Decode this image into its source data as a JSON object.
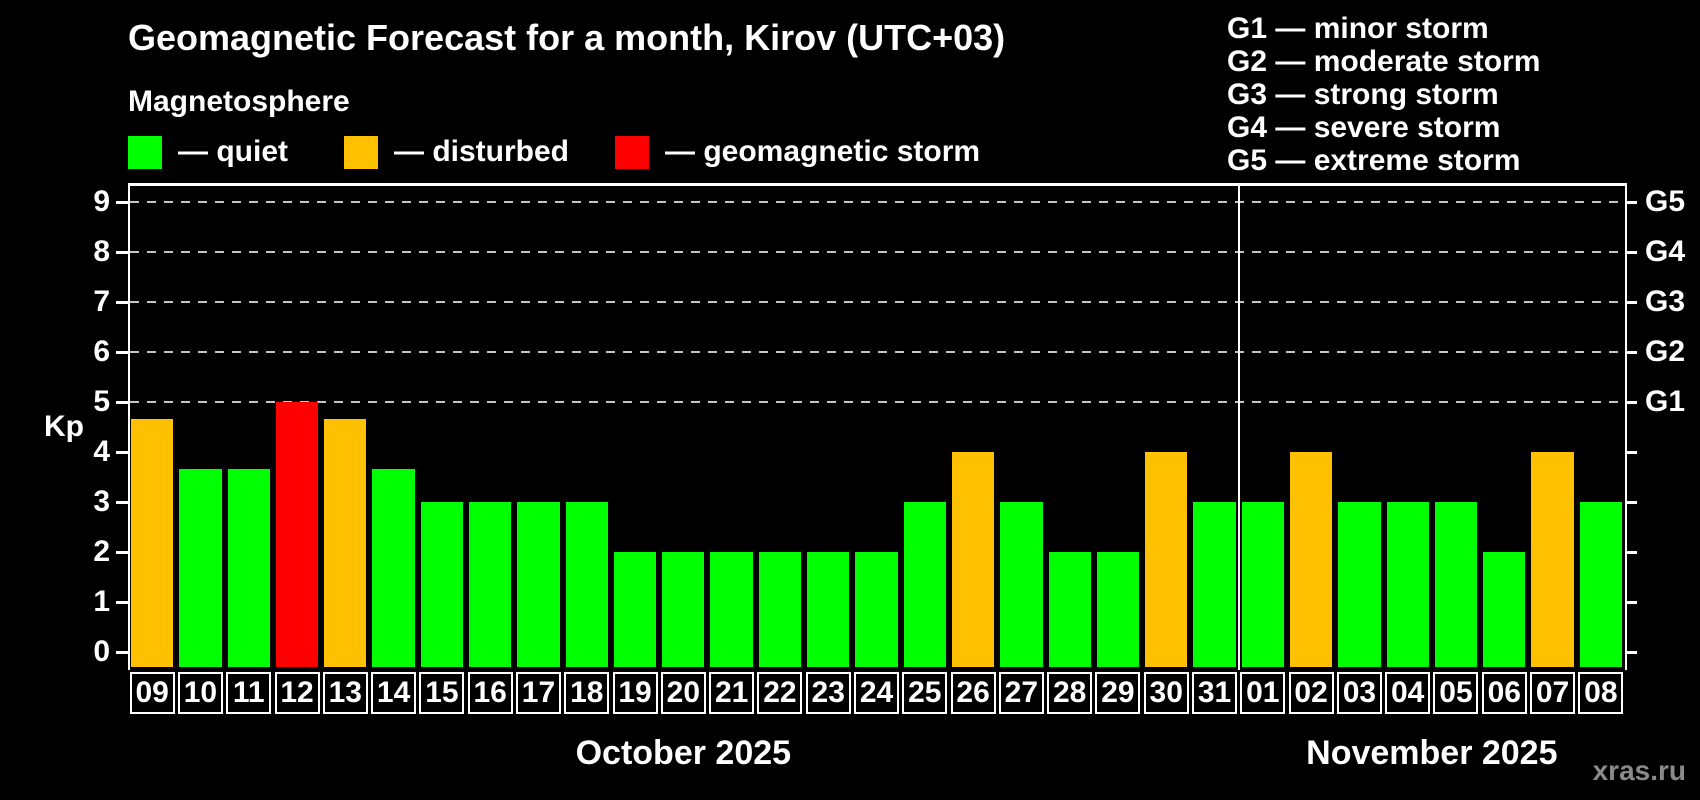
{
  "title": "Geomagnetic Forecast for a month, Kirov (UTC+03)",
  "subtitle": "Magnetosphere",
  "legend": {
    "dash": "—",
    "items": [
      {
        "name": "quiet",
        "label": "quiet",
        "color": "#00ff00"
      },
      {
        "name": "disturbed",
        "label": "disturbed",
        "color": "#ffc000"
      },
      {
        "name": "storm",
        "label": "geomagnetic storm",
        "color": "#ff0000"
      }
    ]
  },
  "g_legend": {
    "items": [
      "G1 — minor storm",
      "G2 — moderate storm",
      "G3 — strong storm",
      "G4 — severe storm",
      "G5 — extreme storm"
    ]
  },
  "watermark": "xras.ru",
  "chart_data": {
    "type": "bar",
    "ylabel": "Kp",
    "ylim": [
      0,
      9.4
    ],
    "grid": "dashed-horizontal",
    "gridlines_at_kp": [
      5,
      6,
      7,
      8,
      9
    ],
    "y_ticks": [
      0,
      1,
      2,
      3,
      4,
      5,
      6,
      7,
      8,
      9
    ],
    "right_axis_labels": [
      {
        "label": "G1",
        "kp": 5
      },
      {
        "label": "G2",
        "kp": 6
      },
      {
        "label": "G3",
        "kp": 7
      },
      {
        "label": "G4",
        "kp": 8
      },
      {
        "label": "G5",
        "kp": 9
      }
    ],
    "months": [
      {
        "label": "October 2025",
        "days": 23
      },
      {
        "label": "November 2025",
        "days": 8
      }
    ],
    "categories": [
      "09",
      "10",
      "11",
      "12",
      "13",
      "14",
      "15",
      "16",
      "17",
      "18",
      "19",
      "20",
      "21",
      "22",
      "23",
      "24",
      "25",
      "26",
      "27",
      "28",
      "29",
      "30",
      "31",
      "01",
      "02",
      "03",
      "04",
      "05",
      "06",
      "07",
      "08"
    ],
    "values": [
      4.67,
      3.67,
      3.67,
      5,
      4.67,
      3.67,
      3,
      3,
      3,
      3,
      2,
      2,
      2,
      2,
      2,
      2,
      3,
      4,
      3,
      2,
      2,
      4,
      3,
      3,
      4,
      3,
      3,
      3,
      2,
      4,
      3
    ],
    "statuses": [
      "disturbed",
      "quiet",
      "quiet",
      "storm",
      "disturbed",
      "quiet",
      "quiet",
      "quiet",
      "quiet",
      "quiet",
      "quiet",
      "quiet",
      "quiet",
      "quiet",
      "quiet",
      "quiet",
      "quiet",
      "disturbed",
      "quiet",
      "quiet",
      "quiet",
      "disturbed",
      "quiet",
      "quiet",
      "disturbed",
      "quiet",
      "quiet",
      "quiet",
      "quiet",
      "disturbed",
      "quiet"
    ],
    "status_colors": {
      "quiet": "#00ff00",
      "disturbed": "#ffc000",
      "storm": "#ff0000"
    }
  }
}
